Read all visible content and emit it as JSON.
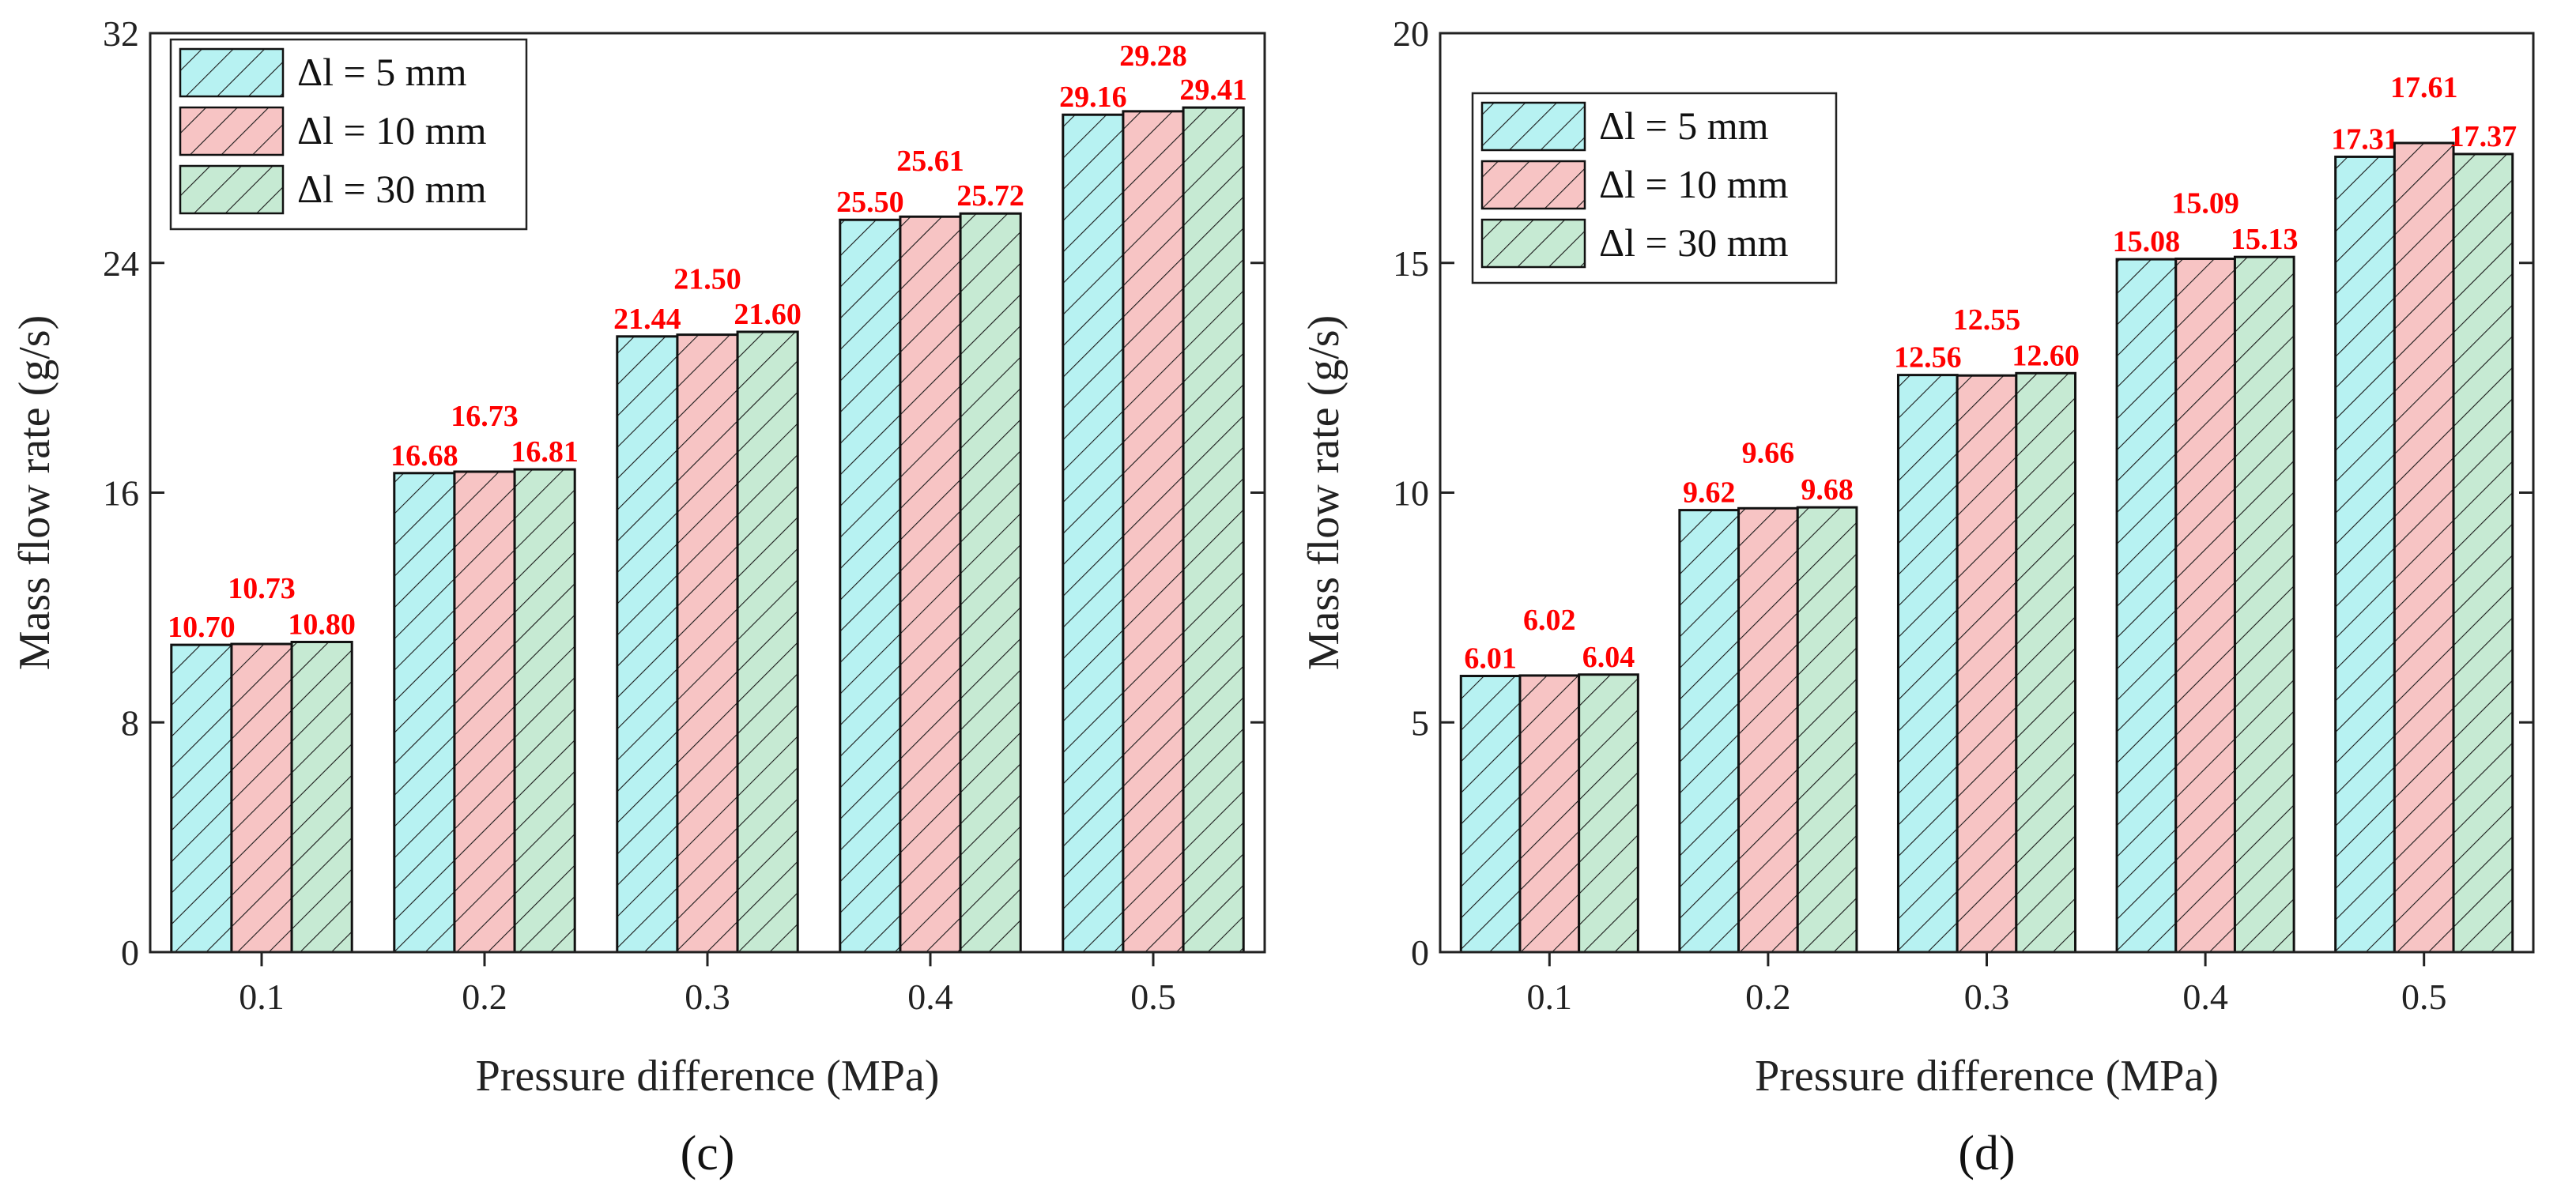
{
  "colors": {
    "series": [
      "#b7f2f2",
      "#f7c4c4",
      "#c6ead3"
    ],
    "data_label": "#ff0000",
    "axis": "#222222"
  },
  "panels": [
    {
      "panel_label": "(c)",
      "panel_letter": "c"
    },
    {
      "panel_label": "(d)",
      "panel_letter": "d"
    }
  ],
  "chart_data": [
    {
      "type": "bar",
      "title": "",
      "xlabel": "Pressure difference (MPa)",
      "ylabel": "Mass flow rate (g/s)",
      "categories": [
        "0.1",
        "0.2",
        "0.3",
        "0.4",
        "0.5"
      ],
      "ylim": [
        0,
        32
      ],
      "yticks": [
        0,
        8,
        16,
        24,
        32
      ],
      "legend_position": "top-left",
      "series": [
        {
          "name": "Δl = 5 mm",
          "values": [
            10.7,
            16.68,
            21.44,
            25.5,
            29.16
          ]
        },
        {
          "name": "Δl = 10 mm",
          "values": [
            10.73,
            16.73,
            21.5,
            25.61,
            29.28
          ]
        },
        {
          "name": "Δl = 30 mm",
          "values": [
            10.8,
            16.81,
            21.6,
            25.72,
            29.41
          ]
        }
      ],
      "value_labels": [
        [
          "10.70",
          "16.68",
          "21.44",
          "25.50",
          "29.16"
        ],
        [
          "10.73",
          "16.73",
          "21.50",
          "25.61",
          "29.28"
        ],
        [
          "10.80",
          "16.81",
          "21.60",
          "25.72",
          "29.41"
        ]
      ]
    },
    {
      "type": "bar",
      "title": "",
      "xlabel": "Pressure difference (MPa)",
      "ylabel": "Mass flow rate (g/s)",
      "categories": [
        "0.1",
        "0.2",
        "0.3",
        "0.4",
        "0.5"
      ],
      "ylim": [
        0,
        20
      ],
      "yticks": [
        0,
        5,
        10,
        15,
        20
      ],
      "legend_position": "top-left",
      "series": [
        {
          "name": "Δl  = 5 mm",
          "values": [
            6.01,
            9.62,
            12.56,
            15.08,
            17.31
          ]
        },
        {
          "name": "Δl  = 10 mm",
          "values": [
            6.02,
            9.66,
            12.55,
            15.09,
            17.61
          ]
        },
        {
          "name": "Δl  = 30 mm",
          "values": [
            6.04,
            9.68,
            12.6,
            15.13,
            17.37
          ]
        }
      ],
      "value_labels": [
        [
          "6.01",
          "9.62",
          "12.56",
          "15.08",
          "17.31"
        ],
        [
          "6.02",
          "9.66",
          "12.55",
          "15.09",
          "17.61"
        ],
        [
          "6.04",
          "9.68",
          "12.60",
          "15.13",
          "17.37"
        ]
      ]
    }
  ]
}
